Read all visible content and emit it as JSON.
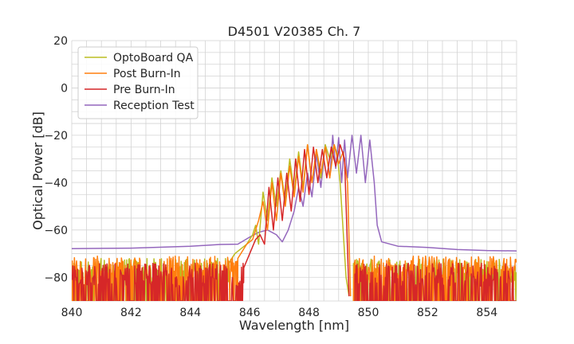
{
  "chart_data": {
    "type": "line",
    "title": "D4501 V20385 Ch. 7",
    "xlabel": "Wavelength [nm]",
    "ylabel": "Optical Power [dB]",
    "xlim": [
      840,
      855
    ],
    "ylim": [
      -90,
      20
    ],
    "xticks": [
      840,
      842,
      844,
      846,
      848,
      850,
      852,
      854
    ],
    "yticks": [
      -80,
      -60,
      -40,
      -20,
      0,
      20
    ],
    "xtick_labels": [
      "840",
      "842",
      "844",
      "846",
      "848",
      "850",
      "852",
      "854"
    ],
    "ytick_labels": [
      "−80",
      "−60",
      "−40",
      "−20",
      "0",
      "20"
    ],
    "grid": true,
    "legend_position": "top-left",
    "series": [
      {
        "name": "OptoBoard QA",
        "color": "#bcbd22",
        "noise": {
          "x_start": 840,
          "x_end": 855,
          "gap": [
            849.35,
            849.5
          ],
          "y_top_range": [
            -82,
            -72
          ]
        },
        "x": [
          840.0,
          845.3,
          845.5,
          845.7,
          845.9,
          846.1,
          846.2,
          846.3,
          846.45,
          846.6,
          846.75,
          846.9,
          847.05,
          847.2,
          847.35,
          847.5,
          847.65,
          847.8,
          847.95,
          848.1,
          848.25,
          848.4,
          848.55,
          848.7,
          848.85,
          848.95,
          849.05,
          849.15,
          849.25,
          849.35
        ],
        "y": [
          -90,
          -74,
          -70,
          -68,
          -66,
          -62,
          -58,
          -66,
          -44,
          -56,
          -38,
          -50,
          -35,
          -48,
          -30,
          -44,
          -27,
          -42,
          -24,
          -40,
          -26,
          -38,
          -24,
          -30,
          -24,
          -28,
          -40,
          -60,
          -80,
          -88
        ]
      },
      {
        "name": "Post Burn-In",
        "color": "#ff7f0e",
        "noise": {
          "x_start": 840,
          "x_end": 855,
          "gap": [
            849.35,
            849.5
          ],
          "y_top_range": [
            -80,
            -71
          ]
        },
        "x": [
          840.0,
          845.6,
          845.9,
          846.1,
          846.3,
          846.45,
          846.6,
          846.75,
          846.9,
          847.05,
          847.2,
          847.35,
          847.5,
          847.65,
          847.8,
          847.95,
          848.1,
          848.25,
          848.4,
          848.55,
          848.7,
          848.85,
          849.0,
          849.15,
          849.3,
          849.4
        ],
        "y": [
          -90,
          -72,
          -66,
          -64,
          -56,
          -48,
          -60,
          -40,
          -56,
          -36,
          -50,
          -33,
          -46,
          -29,
          -44,
          -24,
          -40,
          -26,
          -36,
          -25,
          -38,
          -24,
          -32,
          -27,
          -40,
          -88
        ]
      },
      {
        "name": "Pre Burn-In",
        "color": "#d62728",
        "noise": {
          "x_start": 840,
          "x_end": 855,
          "gap": [
            849.35,
            849.55
          ],
          "y_top_range": [
            -84,
            -74
          ]
        },
        "x": [
          840.0,
          845.8,
          846.0,
          846.2,
          846.35,
          846.5,
          846.65,
          846.8,
          846.95,
          847.1,
          847.25,
          847.4,
          847.55,
          847.7,
          847.85,
          848.0,
          848.15,
          848.3,
          848.45,
          848.6,
          848.75,
          848.9,
          849.05,
          849.2,
          849.35
        ],
        "y": [
          -90,
          -76,
          -70,
          -64,
          -62,
          -66,
          -42,
          -60,
          -38,
          -56,
          -36,
          -52,
          -30,
          -48,
          -26,
          -45,
          -25,
          -40,
          -26,
          -38,
          -25,
          -33,
          -24,
          -30,
          -88
        ]
      },
      {
        "name": "Reception Test",
        "color": "#9467bd",
        "x": [
          840.0,
          842.0,
          844.0,
          845.0,
          845.6,
          846.0,
          846.3,
          846.6,
          846.9,
          847.1,
          847.3,
          847.5,
          847.65,
          847.8,
          847.95,
          848.1,
          848.25,
          848.4,
          848.55,
          848.7,
          848.8,
          848.9,
          849.0,
          849.1,
          849.2,
          849.3,
          849.45,
          849.6,
          849.75,
          849.9,
          850.05,
          850.2,
          850.3,
          850.45,
          851.0,
          852.0,
          853.0,
          854.0,
          855.0
        ],
        "y": [
          -68,
          -67.5,
          -67,
          -66.5,
          -66,
          -63,
          -61,
          -60,
          -62,
          -65,
          -60,
          -52,
          -42,
          -50,
          -36,
          -46,
          -28,
          -42,
          -24,
          -38,
          -20,
          -34,
          -21,
          -40,
          -22,
          -38,
          -20,
          -36,
          -20,
          -40,
          -22,
          -40,
          -58,
          -65,
          -67,
          -67.5,
          -68,
          -69,
          -69
        ]
      }
    ]
  }
}
